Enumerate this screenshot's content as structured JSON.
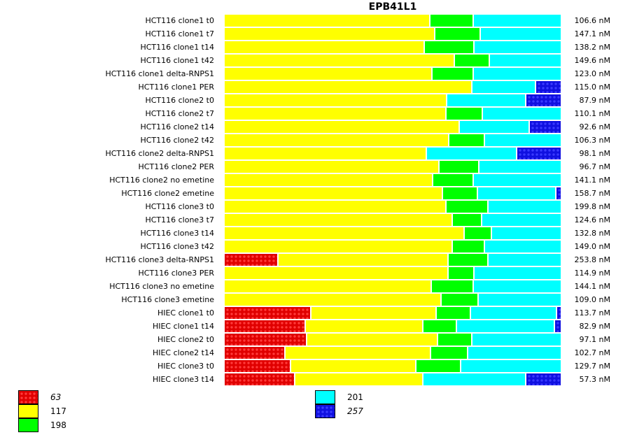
{
  "chart_data": {
    "type": "bar",
    "orientation": "horizontal-stacked-percent",
    "title": "EPB41L1",
    "xlabel": "",
    "ylabel": "",
    "grid": false,
    "legend_position": "bottom-left",
    "series": [
      {
        "name": "63",
        "italic": true,
        "color": "#e00000",
        "pattern": "cross-hatch"
      },
      {
        "name": "117",
        "italic": false,
        "color": "#ffff00",
        "pattern": "solid"
      },
      {
        "name": "198",
        "italic": false,
        "color": "#00ff00",
        "pattern": "solid"
      },
      {
        "name": "201",
        "italic": false,
        "color": "#00ffff",
        "pattern": "solid"
      },
      {
        "name": "257",
        "italic": true,
        "color": "#1010e0",
        "pattern": "cross-hatch"
      }
    ],
    "categories": [
      "HCT116 clone1 t0",
      "HCT116 clone1 t7",
      "HCT116 clone1 t14",
      "HCT116 clone1 t42",
      "HCT116 clone1 delta-RNPS1",
      "HCT116 clone1 PER",
      "HCT116 clone2 t0",
      "HCT116 clone2 t7",
      "HCT116 clone2 t14",
      "HCT116 clone2 t42",
      "HCT116 clone2 delta-RNPS1",
      "HCT116 clone2 PER",
      "HCT116 clone2 no emetine",
      "HCT116 clone2 emetine",
      "HCT116 clone3 t0",
      "HCT116 clone3 t7",
      "HCT116 clone3 t14",
      "HCT116 clone3 t42",
      "HCT116 clone3 delta-RNPS1",
      "HCT116 clone3 PER",
      "HCT116 clone3 no emetine",
      "HCT116 clone3 emetine",
      "HIEC clone1 t0",
      "HIEC clone1 t14",
      "HIEC clone2 t0",
      "HIEC clone2 t14",
      "HIEC clone3 t0",
      "HIEC clone3 t14"
    ],
    "percent_values": [
      [
        0,
        61.3,
        12.9,
        25.8,
        0
      ],
      [
        0,
        62.7,
        13.5,
        23.8,
        0
      ],
      [
        0,
        59.6,
        14.8,
        25.6,
        0
      ],
      [
        0,
        68.5,
        10.4,
        21.1,
        0
      ],
      [
        0,
        61.9,
        12.3,
        25.8,
        0
      ],
      [
        0,
        73.8,
        0,
        19.0,
        7.2
      ],
      [
        0,
        66.3,
        0,
        23.5,
        10.2
      ],
      [
        0,
        66.0,
        10.8,
        23.2,
        0
      ],
      [
        0,
        70.0,
        0,
        20.8,
        9.2
      ],
      [
        0,
        66.9,
        10.6,
        22.5,
        0
      ],
      [
        0,
        60.2,
        0,
        26.9,
        12.9
      ],
      [
        0,
        63.9,
        11.9,
        24.2,
        0
      ],
      [
        0,
        62.1,
        12.1,
        25.8,
        0
      ],
      [
        0,
        65.0,
        10.4,
        23.3,
        1.3
      ],
      [
        0,
        66.0,
        12.5,
        21.5,
        0
      ],
      [
        0,
        67.9,
        8.8,
        23.3,
        0
      ],
      [
        0,
        71.5,
        8.1,
        20.4,
        0
      ],
      [
        0,
        67.9,
        9.6,
        22.5,
        0
      ],
      [
        16.0,
        50.6,
        11.9,
        21.5,
        0
      ],
      [
        0,
        66.7,
        7.7,
        25.6,
        0
      ],
      [
        0,
        61.7,
        12.5,
        25.8,
        0
      ],
      [
        0,
        64.6,
        11.0,
        24.4,
        0
      ],
      [
        25.8,
        37.3,
        10.2,
        25.6,
        1.1
      ],
      [
        24.2,
        35.0,
        10.0,
        29.2,
        1.6
      ],
      [
        24.6,
        39.0,
        10.2,
        26.2,
        0
      ],
      [
        18.1,
        43.3,
        11.0,
        27.6,
        0
      ],
      [
        19.8,
        37.3,
        13.3,
        29.6,
        0
      ],
      [
        21.0,
        38.1,
        0,
        30.7,
        10.2
      ]
    ],
    "totals": [
      "106.6 nM",
      "147.1 nM",
      "138.2 nM",
      "149.6 nM",
      "123.0 nM",
      "115.0 nM",
      "87.9 nM",
      "110.1 nM",
      "92.6 nM",
      "106.3 nM",
      "98.1 nM",
      "96.7 nM",
      "141.1 nM",
      "158.7 nM",
      "199.8 nM",
      "124.6 nM",
      "132.8 nM",
      "149.0 nM",
      "253.8 nM",
      "114.9 nM",
      "144.1 nM",
      "109.0 nM",
      "113.7 nM",
      "82.9 nM",
      "97.1 nM",
      "102.7 nM",
      "129.7 nM",
      "57.3 nM"
    ]
  }
}
